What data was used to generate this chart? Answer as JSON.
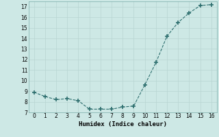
{
  "x": [
    0,
    1,
    2,
    3,
    4,
    5,
    6,
    7,
    8,
    9,
    10,
    11,
    12,
    13,
    14,
    15,
    16
  ],
  "y": [
    8.9,
    8.5,
    8.2,
    8.3,
    8.1,
    7.3,
    7.3,
    7.3,
    7.5,
    7.6,
    9.6,
    11.7,
    14.2,
    15.5,
    16.4,
    17.1,
    17.2
  ],
  "xlabel": "Humidex (Indice chaleur)",
  "ylim": [
    7,
    17.5
  ],
  "xlim": [
    -0.5,
    16.5
  ],
  "yticks": [
    7,
    8,
    9,
    10,
    11,
    12,
    13,
    14,
    15,
    16,
    17
  ],
  "xticks": [
    0,
    1,
    2,
    3,
    4,
    5,
    6,
    7,
    8,
    9,
    10,
    11,
    12,
    13,
    14,
    15,
    16
  ],
  "line_color": "#2d6e6e",
  "marker_color": "#2d6e6e",
  "bg_color": "#cde8e5",
  "grid_color": "#b8d5d2"
}
